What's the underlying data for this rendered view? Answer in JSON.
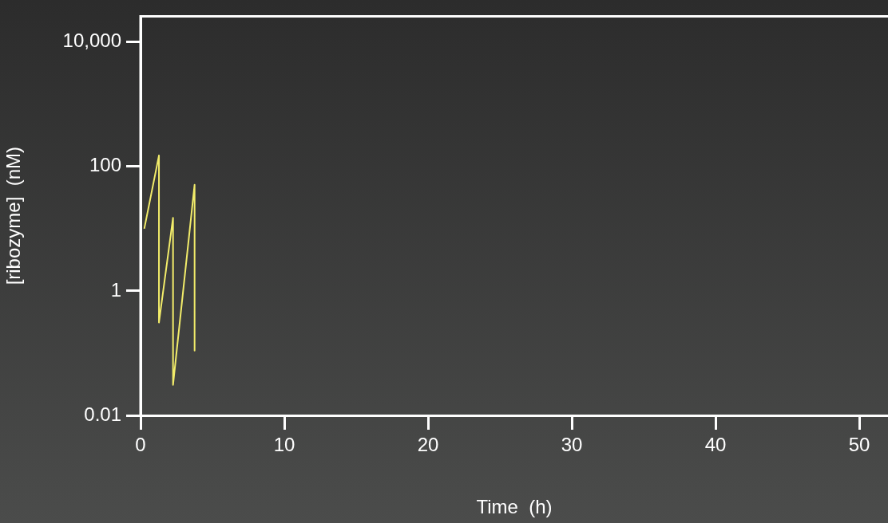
{
  "chart_data": {
    "type": "line",
    "xlabel": "Time  (h)",
    "ylabel": "[ribozyme]  (nM)",
    "log": "y",
    "xlim": [
      0,
      52
    ],
    "xticks": [
      0,
      10,
      20,
      30,
      40,
      50
    ],
    "ylim": [
      0.01,
      26000
    ],
    "yticks": [
      0.01,
      1,
      100,
      {
        "value": 10000,
        "label": "10,000"
      }
    ],
    "series": [
      {
        "color": "#f2ec6a",
        "x": [
          0.26,
          1.28,
          1.28,
          2.26,
          2.26,
          3.76,
          3.76
        ],
        "values": [
          10,
          150,
          0.31,
          15,
          0.031,
          51,
          0.11
        ]
      }
    ],
    "grid": false,
    "legend": false,
    "marker": "none",
    "line_style": "solid"
  }
}
